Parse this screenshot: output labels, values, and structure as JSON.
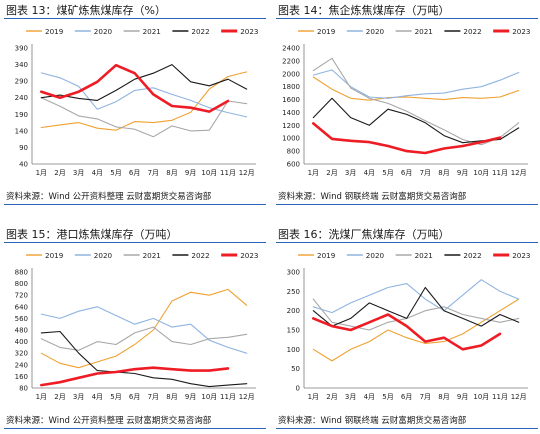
{
  "chart_data": [
    {
      "type": "line",
      "title": "图表 13：煤矿炼焦煤库存（%）",
      "source": "资料来源：Wind 公开资料整理 云财富期货交易咨询部",
      "x_labels": [
        "1月",
        "2月",
        "3月",
        "4月",
        "5月",
        "6月",
        "7月",
        "8月",
        "9月",
        "10月",
        "11月",
        "12月"
      ],
      "y_ticks": [
        40,
        90,
        140,
        190,
        240,
        290,
        340,
        390
      ],
      "ylim": [
        40,
        390
      ],
      "legend_position": "top",
      "grid": false,
      "series": [
        {
          "name": "2019",
          "color": "#f0a030",
          "values": [
            150,
            158,
            165,
            148,
            142,
            168,
            165,
            172,
            196,
            266,
            304,
            318
          ]
        },
        {
          "name": "2020",
          "color": "#8fb4e0",
          "values": [
            315,
            300,
            274,
            205,
            228,
            262,
            270,
            250,
            232,
            210,
            195,
            182
          ]
        },
        {
          "name": "2021",
          "color": "#a8a8a8",
          "values": [
            240,
            214,
            185,
            176,
            152,
            145,
            122,
            155,
            140,
            142,
            230,
            222
          ]
        },
        {
          "name": "2022",
          "color": "#1a1a1a",
          "values": [
            240,
            248,
            238,
            232,
            262,
            296,
            314,
            340,
            288,
            276,
            296,
            266
          ]
        },
        {
          "name": "2023",
          "color": "#ee1c25",
          "values": [
            258,
            240,
            258,
            288,
            338,
            314,
            250,
            215,
            210,
            198,
            230,
            null
          ]
        }
      ]
    },
    {
      "type": "line",
      "title": "图表 14：焦企炼焦煤库存（万吨）",
      "source": "资料来源：Wind 钢联终端 云财富期货交易咨询部",
      "x_labels": [
        "1月",
        "2月",
        "3月",
        "4月",
        "5月",
        "6月",
        "7月",
        "8月",
        "9月",
        "10月",
        "11月",
        "12月"
      ],
      "y_ticks": [
        600,
        800,
        1000,
        1200,
        1400,
        1600,
        1800,
        2000,
        2200,
        2400
      ],
      "ylim": [
        600,
        2400
      ],
      "legend_position": "top",
      "grid": false,
      "series": [
        {
          "name": "2019",
          "color": "#f0a030",
          "values": [
            1950,
            1760,
            1620,
            1590,
            1630,
            1640,
            1620,
            1600,
            1630,
            1620,
            1640,
            1740
          ]
        },
        {
          "name": "2020",
          "color": "#8fb4e0",
          "values": [
            1980,
            2060,
            1800,
            1640,
            1620,
            1660,
            1690,
            1700,
            1760,
            1800,
            1900,
            2020
          ]
        },
        {
          "name": "2021",
          "color": "#a8a8a8",
          "values": [
            2050,
            2240,
            1780,
            1620,
            1540,
            1420,
            1270,
            1130,
            980,
            900,
            1010,
            1240
          ]
        },
        {
          "name": "2022",
          "color": "#1a1a1a",
          "values": [
            1320,
            1620,
            1320,
            1200,
            1450,
            1370,
            1240,
            1040,
            930,
            960,
            980,
            1160
          ]
        },
        {
          "name": "2023",
          "color": "#ee1c25",
          "values": [
            1230,
            990,
            960,
            940,
            880,
            800,
            770,
            840,
            880,
            940,
            1010,
            null
          ]
        }
      ]
    },
    {
      "type": "line",
      "title": "图表 15：港口炼焦煤库存（万吨）",
      "source": "资料来源：Wind 公开资料整理 云财富期货交易咨询部",
      "x_labels": [
        "1月",
        "2月",
        "3月",
        "4月",
        "5月",
        "6月",
        "7月",
        "8月",
        "9月",
        "10月",
        "11月",
        "12月"
      ],
      "y_ticks": [
        80,
        160,
        240,
        320,
        400,
        480,
        560,
        640,
        720,
        800,
        880
      ],
      "ylim": [
        80,
        880
      ],
      "legend_position": "top",
      "grid": false,
      "series": [
        {
          "name": "2019",
          "color": "#f0a030",
          "values": [
            320,
            250,
            220,
            260,
            300,
            380,
            480,
            680,
            740,
            720,
            760,
            650
          ]
        },
        {
          "name": "2020",
          "color": "#8fb4e0",
          "values": [
            590,
            560,
            610,
            640,
            580,
            520,
            560,
            500,
            520,
            410,
            360,
            320
          ]
        },
        {
          "name": "2021",
          "color": "#a8a8a8",
          "values": [
            420,
            360,
            340,
            400,
            380,
            460,
            500,
            400,
            380,
            420,
            430,
            450
          ]
        },
        {
          "name": "2022",
          "color": "#1a1a1a",
          "values": [
            460,
            470,
            320,
            200,
            190,
            180,
            150,
            140,
            110,
            90,
            100,
            110
          ]
        },
        {
          "name": "2023",
          "color": "#ee1c25",
          "values": [
            100,
            120,
            150,
            180,
            190,
            210,
            220,
            210,
            200,
            200,
            215,
            null
          ]
        }
      ]
    },
    {
      "type": "line",
      "title": "图表 16：洗煤厂焦煤库存（万吨）",
      "source": "资料来源：Wind 钢联终端 云财富期货交易咨询部",
      "x_labels": [
        "1月",
        "2月",
        "3月",
        "4月",
        "5月",
        "6月",
        "7月",
        "8月",
        "9月",
        "10月",
        "11月",
        "12月"
      ],
      "y_ticks": [
        0,
        50,
        100,
        150,
        200,
        250,
        300
      ],
      "ylim": [
        0,
        300
      ],
      "legend_position": "top",
      "grid": false,
      "series": [
        {
          "name": "2019",
          "color": "#f0a030",
          "values": [
            100,
            70,
            100,
            120,
            150,
            130,
            115,
            120,
            140,
            170,
            200,
            230
          ]
        },
        {
          "name": "2020",
          "color": "#8fb4e0",
          "values": [
            210,
            195,
            220,
            240,
            260,
            270,
            230,
            200,
            240,
            280,
            250,
            230
          ]
        },
        {
          "name": "2021",
          "color": "#a8a8a8",
          "values": [
            230,
            170,
            160,
            150,
            170,
            180,
            200,
            210,
            190,
            180,
            170,
            180
          ]
        },
        {
          "name": "2022",
          "color": "#1a1a1a",
          "values": [
            200,
            160,
            180,
            220,
            200,
            180,
            260,
            200,
            180,
            160,
            190,
            170
          ]
        },
        {
          "name": "2023",
          "color": "#ee1c25",
          "values": [
            180,
            160,
            150,
            170,
            190,
            160,
            120,
            130,
            100,
            110,
            140,
            null
          ]
        }
      ]
    }
  ]
}
